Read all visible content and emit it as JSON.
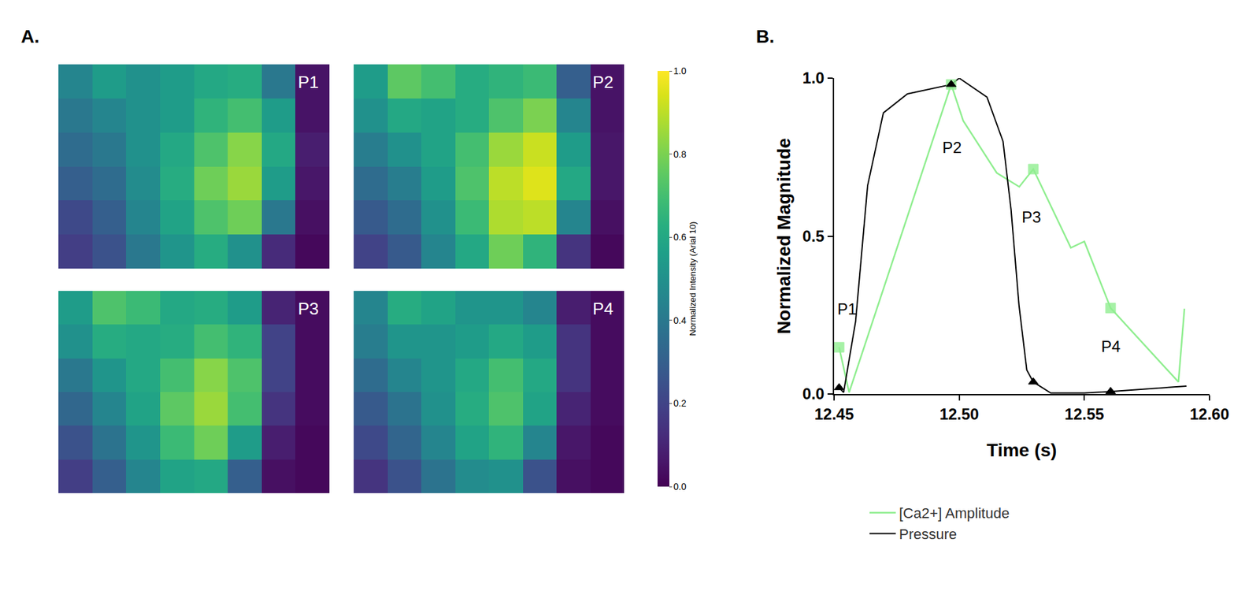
{
  "chart_data": [
    {
      "type": "heatmap",
      "panel_label": "A.",
      "colorbar_title": "Normalized Intensity (Arial 10)",
      "zlim": [
        0,
        1
      ],
      "zticks": [
        {
          "value": 0,
          "label": "0.0"
        },
        {
          "value": 0.2,
          "label": "0.2"
        },
        {
          "value": 0.4,
          "label": "0.4"
        },
        {
          "value": 0.6,
          "label": "0.6"
        },
        {
          "value": 0.8,
          "label": "0.8"
        },
        {
          "value": 1,
          "label": "1.0"
        }
      ],
      "panels": [
        {
          "label": "P1",
          "cells": [
            [
              0.45,
              0.55,
              0.5,
              0.55,
              0.6,
              0.62,
              0.4,
              0.05
            ],
            [
              0.4,
              0.45,
              0.5,
              0.55,
              0.65,
              0.7,
              0.55,
              0.05
            ],
            [
              0.35,
              0.4,
              0.5,
              0.6,
              0.72,
              0.82,
              0.6,
              0.08
            ],
            [
              0.3,
              0.35,
              0.48,
              0.62,
              0.78,
              0.85,
              0.55,
              0.06
            ],
            [
              0.22,
              0.3,
              0.45,
              0.58,
              0.72,
              0.78,
              0.4,
              0.04
            ],
            [
              0.18,
              0.25,
              0.4,
              0.52,
              0.62,
              0.5,
              0.12,
              0.02
            ]
          ]
        },
        {
          "label": "P2",
          "cells": [
            [
              0.55,
              0.75,
              0.7,
              0.62,
              0.65,
              0.68,
              0.3,
              0.05
            ],
            [
              0.5,
              0.6,
              0.58,
              0.62,
              0.72,
              0.8,
              0.45,
              0.05
            ],
            [
              0.42,
              0.5,
              0.58,
              0.7,
              0.85,
              0.92,
              0.55,
              0.06
            ],
            [
              0.35,
              0.42,
              0.55,
              0.72,
              0.9,
              0.95,
              0.6,
              0.06
            ],
            [
              0.28,
              0.35,
              0.5,
              0.68,
              0.88,
              0.9,
              0.45,
              0.04
            ],
            [
              0.2,
              0.28,
              0.45,
              0.6,
              0.78,
              0.65,
              0.15,
              0.02
            ]
          ]
        },
        {
          "label": "P3",
          "cells": [
            [
              0.55,
              0.72,
              0.68,
              0.6,
              0.62,
              0.55,
              0.1,
              0.03
            ],
            [
              0.5,
              0.62,
              0.6,
              0.62,
              0.7,
              0.65,
              0.2,
              0.03
            ],
            [
              0.4,
              0.52,
              0.6,
              0.7,
              0.82,
              0.72,
              0.2,
              0.03
            ],
            [
              0.33,
              0.45,
              0.58,
              0.75,
              0.85,
              0.7,
              0.15,
              0.03
            ],
            [
              0.25,
              0.38,
              0.52,
              0.68,
              0.78,
              0.55,
              0.08,
              0.02
            ],
            [
              0.18,
              0.3,
              0.45,
              0.58,
              0.6,
              0.3,
              0.04,
              0.02
            ]
          ]
        },
        {
          "label": "P4",
          "cells": [
            [
              0.45,
              0.62,
              0.58,
              0.52,
              0.52,
              0.45,
              0.08,
              0.03
            ],
            [
              0.42,
              0.52,
              0.52,
              0.55,
              0.6,
              0.55,
              0.15,
              0.03
            ],
            [
              0.35,
              0.45,
              0.52,
              0.6,
              0.7,
              0.6,
              0.15,
              0.03
            ],
            [
              0.28,
              0.38,
              0.5,
              0.62,
              0.72,
              0.58,
              0.1,
              0.03
            ],
            [
              0.22,
              0.32,
              0.45,
              0.58,
              0.65,
              0.45,
              0.06,
              0.02
            ],
            [
              0.15,
              0.25,
              0.38,
              0.48,
              0.5,
              0.25,
              0.04,
              0.02
            ]
          ]
        }
      ]
    },
    {
      "type": "line",
      "panel_label": "B.",
      "x_label": "Time (s)",
      "y_label": "Normalized Magnitude",
      "xlim": [
        12.45,
        12.6
      ],
      "xticks": [
        12.45,
        {
          "value": 12.5,
          "label": "12.50"
        },
        12.55,
        {
          "value": 12.6,
          "label": "12.60"
        }
      ],
      "ylim": [
        0,
        1
      ],
      "yticks": [
        {
          "value": 0,
          "label": "0.0"
        },
        0.5,
        {
          "value": 1,
          "label": "1.0"
        }
      ],
      "grid": false,
      "legend": "bottom",
      "series": [
        {
          "name": "[Ca2+] Amplitude",
          "color": "#90ee90",
          "marker": "square",
          "x": [
            12.452,
            12.456,
            12.4968,
            12.5016,
            12.515,
            12.524,
            12.5296,
            12.5446,
            12.55,
            12.5605,
            12.5876,
            12.59
          ],
          "values": [
            0.148,
            0.005,
            0.98,
            0.865,
            0.7,
            0.656,
            0.712,
            0.463,
            0.483,
            0.272,
            0.038,
            0.27
          ],
          "marked_x": [
            12.452,
            12.4968,
            12.5296,
            12.5605
          ],
          "marked_values": [
            0.148,
            0.98,
            0.712,
            0.272
          ]
        },
        {
          "name": "Pressure",
          "color": "#000000",
          "marker": "triangle-up",
          "x": [
            12.452,
            12.4538,
            12.4586,
            12.4634,
            12.4697,
            12.4793,
            12.4968,
            12.5,
            12.5111,
            12.5175,
            12.5207,
            12.5239,
            12.527,
            12.5296,
            12.5366,
            12.55,
            12.5605,
            12.5908
          ],
          "values": [
            0.02,
            0.005,
            0.23,
            0.66,
            0.89,
            0.95,
            0.98,
            1.0,
            0.94,
            0.8,
            0.585,
            0.28,
            0.076,
            0.038,
            0.003,
            0.003,
            0.008,
            0.025
          ],
          "marked_x": [
            12.452,
            12.4968,
            12.5296,
            12.5605
          ],
          "marked_values": [
            0.02,
            0.98,
            0.038,
            0.008
          ]
        }
      ],
      "annotations": [
        {
          "text": "P1",
          "x": 12.455,
          "y": 0.27
        },
        {
          "text": "P2",
          "x": 12.497,
          "y": 0.78
        },
        {
          "text": "P3",
          "x": 12.5287,
          "y": 0.56
        },
        {
          "text": "P4",
          "x": 12.5605,
          "y": 0.15
        }
      ]
    }
  ]
}
